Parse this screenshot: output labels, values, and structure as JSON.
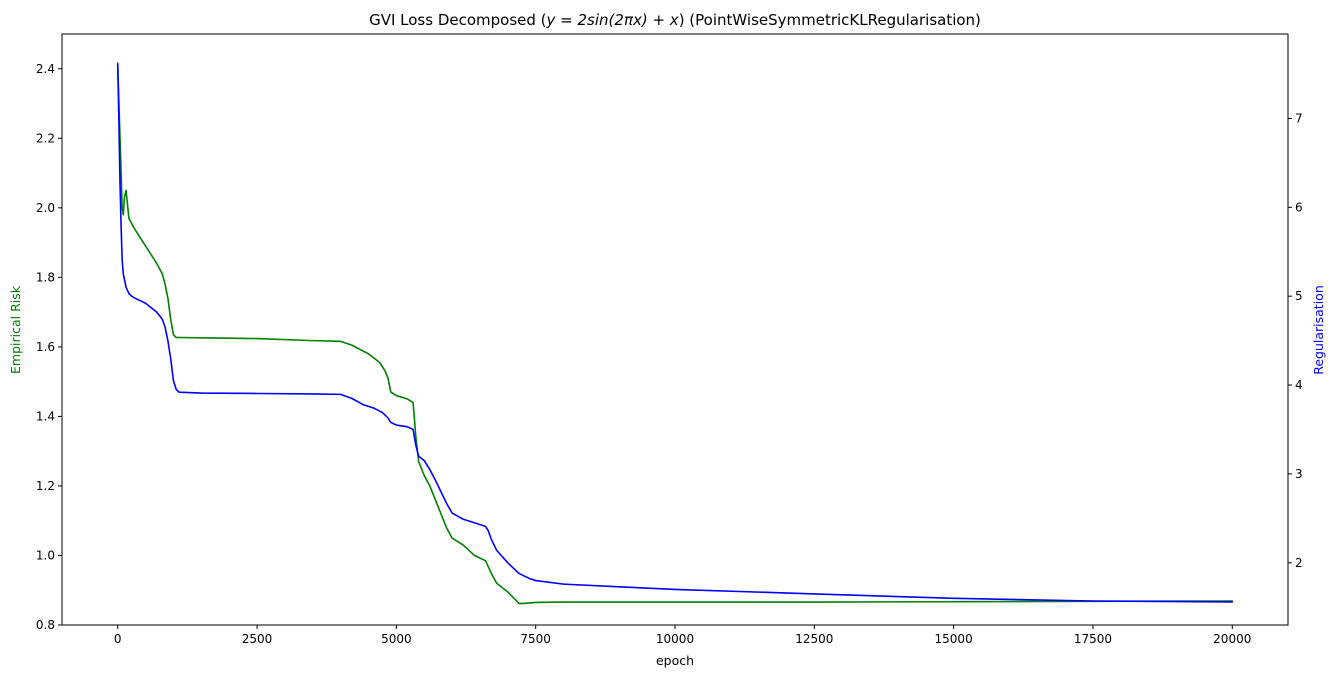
{
  "chart_data": {
    "type": "line",
    "title": "GVI Loss Decomposed ($y = 2\\sin(2\\pi x) + x$) (PointWiseSymmetricKLRegularisation)",
    "title_display": {
      "prefix": "GVI Loss Decomposed (",
      "math": "y = 2sin(2πx) + x",
      "suffix": ") (PointWiseSymmetricKLRegularisation)"
    },
    "xlabel": "epoch",
    "ylabel_left": "Empirical Risk",
    "ylabel_right": "Regularisation",
    "xlim": [
      -1000,
      21000
    ],
    "ylim_left": [
      0.8,
      2.5
    ],
    "ylim_right": [
      1.3,
      7.95
    ],
    "x_ticks": [
      0,
      2500,
      5000,
      7500,
      10000,
      12500,
      15000,
      17500,
      20000
    ],
    "x_tick_labels": [
      "0",
      "2500",
      "5000",
      "7500",
      "10000",
      "12500",
      "15000",
      "17500",
      "20000"
    ],
    "y_left_ticks": [
      0.8,
      1.0,
      1.2,
      1.4,
      1.6,
      1.8,
      2.0,
      2.2,
      2.4
    ],
    "y_left_tick_labels": [
      "0.8",
      "1.0",
      "1.2",
      "1.4",
      "1.6",
      "1.8",
      "2.0",
      "2.2",
      "2.4"
    ],
    "y_right_ticks": [
      2,
      3,
      4,
      5,
      6,
      7
    ],
    "y_right_tick_labels": [
      "2",
      "3",
      "4",
      "5",
      "6",
      "7"
    ],
    "grid": false,
    "legend": "none",
    "series": [
      {
        "axis": "left",
        "color": "#008000",
        "x": [
          0,
          80,
          100,
          120,
          150,
          200,
          300,
          500,
          700,
          800,
          850,
          900,
          950,
          1000,
          1050,
          1100,
          1500,
          2500,
          3500,
          4000,
          4200,
          4500,
          4700,
          4800,
          4850,
          4900,
          5000,
          5200,
          5300,
          5320,
          5350,
          5400,
          5500,
          5600,
          5700,
          5800,
          5900,
          6000,
          6200,
          6400,
          6600,
          6700,
          6800,
          7000,
          7200,
          7300,
          7500,
          8000,
          10000,
          12500,
          15000,
          17500,
          20000
        ],
        "values": [
          2.41,
          2.0,
          1.98,
          2.03,
          2.05,
          1.97,
          1.94,
          1.89,
          1.84,
          1.81,
          1.78,
          1.74,
          1.68,
          1.635,
          1.627,
          1.627,
          1.626,
          1.624,
          1.618,
          1.616,
          1.605,
          1.58,
          1.555,
          1.53,
          1.51,
          1.47,
          1.46,
          1.45,
          1.44,
          1.4,
          1.34,
          1.27,
          1.23,
          1.2,
          1.16,
          1.12,
          1.08,
          1.05,
          1.03,
          1.0,
          0.985,
          0.95,
          0.92,
          0.895,
          0.862,
          0.862,
          0.865,
          0.866,
          0.866,
          0.866,
          0.867,
          0.868,
          0.869
        ]
      },
      {
        "axis": "right",
        "color": "#0000ff",
        "x": [
          0,
          20,
          40,
          60,
          80,
          100,
          150,
          200,
          250,
          300,
          500,
          700,
          800,
          850,
          900,
          950,
          1000,
          1050,
          1100,
          1500,
          2500,
          3500,
          4000,
          4200,
          4400,
          4600,
          4750,
          4850,
          4900,
          5000,
          5200,
          5300,
          5350,
          5400,
          5500,
          5600,
          5700,
          5800,
          5900,
          6000,
          6200,
          6400,
          6600,
          6650,
          6700,
          6800,
          7000,
          7200,
          7400,
          7500,
          8000,
          9000,
          10000,
          12500,
          15000,
          17500,
          20000
        ],
        "values": [
          7.62,
          7.0,
          6.3,
          5.8,
          5.4,
          5.25,
          5.1,
          5.03,
          5.0,
          4.98,
          4.92,
          4.82,
          4.74,
          4.65,
          4.5,
          4.3,
          4.05,
          3.95,
          3.92,
          3.91,
          3.905,
          3.9,
          3.895,
          3.85,
          3.78,
          3.74,
          3.69,
          3.63,
          3.58,
          3.55,
          3.53,
          3.5,
          3.32,
          3.2,
          3.15,
          3.05,
          2.93,
          2.8,
          2.67,
          2.56,
          2.49,
          2.45,
          2.41,
          2.36,
          2.27,
          2.14,
          2.0,
          1.88,
          1.82,
          1.8,
          1.76,
          1.73,
          1.7,
          1.65,
          1.6,
          1.57,
          1.56
        ]
      }
    ]
  }
}
